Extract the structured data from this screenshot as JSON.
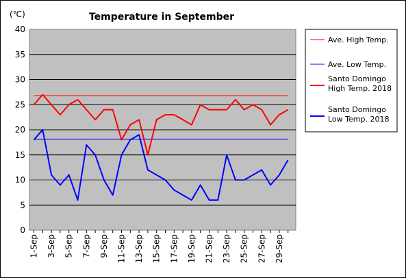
{
  "chart_data": {
    "type": "line",
    "title": "Temperature in September",
    "unit_label": "(℃)",
    "ylim": [
      0,
      40
    ],
    "y_ticks": [
      0,
      5,
      10,
      15,
      20,
      25,
      30,
      35,
      40
    ],
    "x": [
      "1-Sep",
      "2-Sep",
      "3-Sep",
      "4-Sep",
      "5-Sep",
      "6-Sep",
      "7-Sep",
      "8-Sep",
      "9-Sep",
      "10-Sep",
      "11-Sep",
      "12-Sep",
      "13-Sep",
      "14-Sep",
      "15-Sep",
      "16-Sep",
      "17-Sep",
      "18-Sep",
      "19-Sep",
      "20-Sep",
      "21-Sep",
      "22-Sep",
      "23-Sep",
      "24-Sep",
      "25-Sep",
      "26-Sep",
      "27-Sep",
      "28-Sep",
      "29-Sep",
      "30-Sep"
    ],
    "x_tick_labels": [
      "1-Sep",
      "3-Sep",
      "5-Sep",
      "7-Sep",
      "9-Sep",
      "11-Sep",
      "13-Sep",
      "15-Sep",
      "17-Sep",
      "19-Sep",
      "21-Sep",
      "23-Sep",
      "25-Sep",
      "27-Sep",
      "29-Sep"
    ],
    "series": [
      {
        "name": "Ave. High Temp.",
        "color": "#ff0000",
        "style": "thin",
        "values": [
          26.8,
          26.8,
          26.8,
          26.8,
          26.8,
          26.8,
          26.8,
          26.8,
          26.8,
          26.8,
          26.8,
          26.8,
          26.8,
          26.8,
          26.8,
          26.8,
          26.8,
          26.8,
          26.8,
          26.8,
          26.8,
          26.8,
          26.8,
          26.8,
          26.8,
          26.8,
          26.8,
          26.8,
          26.8,
          26.8
        ]
      },
      {
        "name": "Ave. Low Temp.",
        "color": "#0000ff",
        "style": "thin",
        "values": [
          18.1,
          18.1,
          18.1,
          18.1,
          18.1,
          18.1,
          18.1,
          18.1,
          18.1,
          18.1,
          18.1,
          18.1,
          18.1,
          18.1,
          18.1,
          18.1,
          18.1,
          18.1,
          18.1,
          18.1,
          18.1,
          18.1,
          18.1,
          18.1,
          18.1,
          18.1,
          18.1,
          18.1,
          18.1,
          18.1
        ]
      },
      {
        "name": "Santo Domingo High Temp. 2018",
        "legend_lines": [
          "Santo Domingo",
          "High Temp. 2018"
        ],
        "color": "#ff0000",
        "style": "thick",
        "values": [
          25,
          27,
          25,
          23,
          25,
          26,
          24,
          22,
          24,
          24,
          18,
          21,
          22,
          15,
          22,
          23,
          23,
          22,
          21,
          25,
          24,
          24,
          24,
          26,
          24,
          25,
          24,
          21,
          23,
          24
        ]
      },
      {
        "name": "Santo Domingo Low Temp. 2018",
        "legend_lines": [
          "Santo Domingo",
          "Low Temp. 2018"
        ],
        "color": "#0000ff",
        "style": "thick",
        "values": [
          18,
          20,
          11,
          9,
          11,
          6,
          17,
          15,
          10,
          7,
          15,
          18,
          19,
          12,
          11,
          10,
          8,
          7,
          6,
          9,
          6,
          6,
          15,
          10,
          10,
          11,
          12,
          9,
          11,
          14
        ]
      }
    ],
    "plot_background": "#c0c0c0",
    "grid": true,
    "legend_position": "right"
  }
}
